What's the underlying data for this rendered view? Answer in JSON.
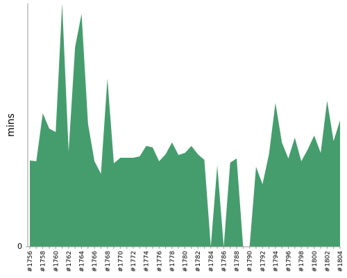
{
  "chart_data": {
    "type": "area",
    "y_label": "mins",
    "categories": [
      "#1756",
      null,
      "#1758",
      null,
      "#1760",
      null,
      "#1762",
      null,
      "#1764",
      null,
      "#1766",
      null,
      "#1768",
      null,
      "#1770",
      null,
      "#1772",
      null,
      "#1774",
      null,
      "#1776",
      null,
      "#1778",
      null,
      "#1780",
      null,
      "#1782",
      null,
      "#1784",
      null,
      "#1786",
      null,
      "#1788",
      null,
      "#1790",
      null,
      "#1792",
      null,
      "#1794",
      null,
      "#1796",
      null,
      "#1798",
      null,
      "#1800",
      null,
      "#1802",
      null,
      "#1804"
    ],
    "series": [
      {
        "color": "#459d6d",
        "values": [
          12.4,
          12.3,
          19.2,
          17,
          16.5,
          35,
          13.7,
          28.7,
          33.5,
          17.7,
          12.3,
          10.5,
          24.2,
          12,
          12.8,
          12.8,
          12.8,
          13,
          14.5,
          14.3,
          12.3,
          13.3,
          15,
          13.2,
          13.5,
          14.5,
          13.3,
          12.5,
          0,
          11.7,
          0,
          12.1,
          12.7,
          0,
          0,
          11.5,
          9,
          13.3,
          20.7,
          15,
          12.7,
          15.7,
          12.3,
          14,
          16,
          13.5,
          21,
          15.2,
          18.2
        ]
      }
    ],
    "ylim": [
      0,
      35
    ],
    "yticks": [
      0
    ]
  }
}
